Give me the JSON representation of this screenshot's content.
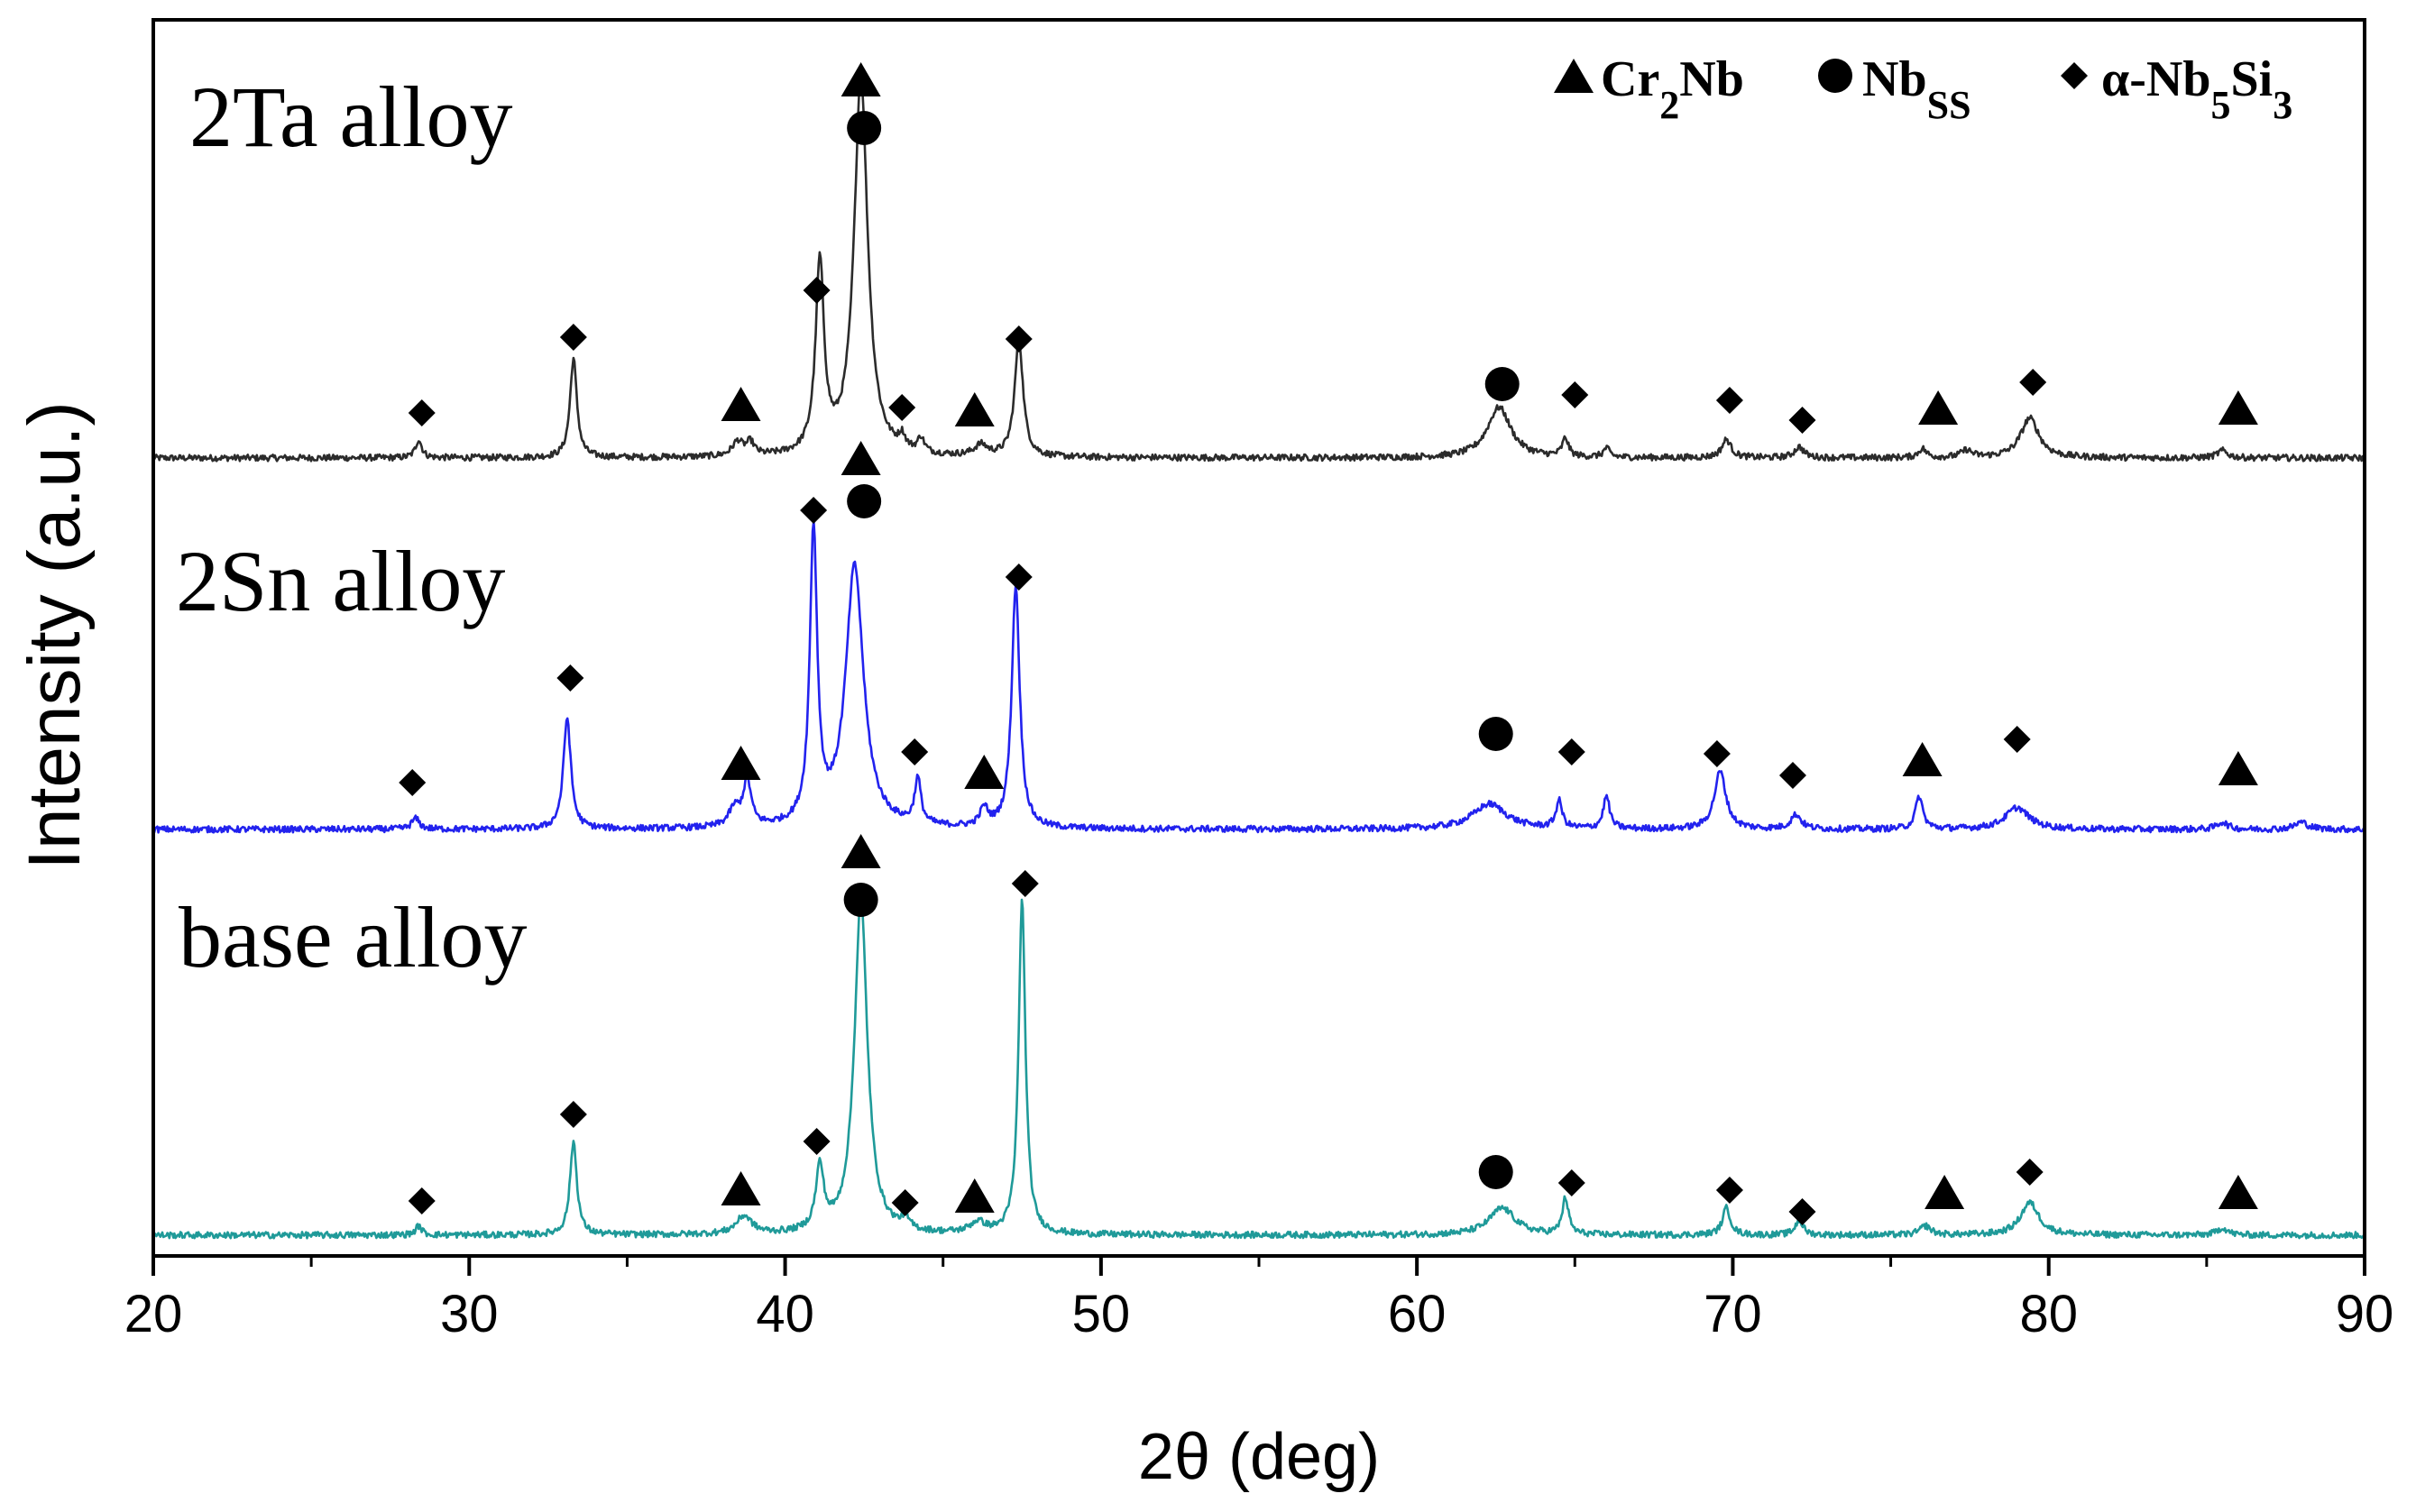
{
  "chart_data": {
    "type": "line",
    "xlabel": "2θ (deg)",
    "ylabel": "Intensity (a.u.)",
    "xlim": [
      20,
      90
    ],
    "xticks": [
      20,
      30,
      40,
      50,
      60,
      70,
      80,
      90
    ],
    "xtick_labels": [
      "20",
      "30",
      "40",
      "50",
      "60",
      "70",
      "80",
      "90"
    ],
    "legend": {
      "placement": "top-right",
      "entries": [
        {
          "marker": "triangle",
          "base": "Cr",
          "sub": "2",
          "rest": "Nb",
          "sub2": "",
          "tail": ""
        },
        {
          "marker": "circle",
          "base": "Nb",
          "sub": "SS",
          "rest": "",
          "sub2": "",
          "tail": ""
        },
        {
          "marker": "diamond",
          "base": "α-Nb",
          "sub": "5",
          "rest": "Si",
          "sub2": "3",
          "tail": ""
        }
      ]
    },
    "series": [
      {
        "name": "2Ta alloy",
        "color": "#2b2b2b",
        "peaks": [
          {
            "x": 28.4,
            "h": 0.1,
            "w": 0.12
          },
          {
            "x": 33.3,
            "h": 0.55,
            "w": 0.13
          },
          {
            "x": 38.5,
            "h": 0.08,
            "w": 0.2
          },
          {
            "x": 38.9,
            "h": 0.07,
            "w": 0.15
          },
          {
            "x": 41.1,
            "h": 1.05,
            "w": 0.16
          },
          {
            "x": 42.4,
            "h": 2.1,
            "w": 0.26
          },
          {
            "x": 43.7,
            "h": 0.07,
            "w": 0.12
          },
          {
            "x": 44.3,
            "h": 0.08,
            "w": 0.12
          },
          {
            "x": 46.2,
            "h": 0.06,
            "w": 0.25
          },
          {
            "x": 47.4,
            "h": 0.65,
            "w": 0.16
          },
          {
            "x": 62.6,
            "h": 0.28,
            "w": 0.45
          },
          {
            "x": 64.7,
            "h": 0.1,
            "w": 0.12
          },
          {
            "x": 66.0,
            "h": 0.05,
            "w": 0.12
          },
          {
            "x": 69.8,
            "h": 0.1,
            "w": 0.18
          },
          {
            "x": 72.1,
            "h": 0.06,
            "w": 0.18
          },
          {
            "x": 76.0,
            "h": 0.05,
            "w": 0.15
          },
          {
            "x": 77.4,
            "h": 0.04,
            "w": 0.2
          },
          {
            "x": 79.4,
            "h": 0.22,
            "w": 0.35
          },
          {
            "x": 85.5,
            "h": 0.04,
            "w": 0.2
          }
        ],
        "markers": [
          {
            "type": "diamond",
            "x": 28.5,
            "y": 0.25
          },
          {
            "type": "diamond",
            "x": 33.3,
            "y": 0.67
          },
          {
            "type": "triangle",
            "x": 38.6,
            "y": 0.3
          },
          {
            "type": "diamond",
            "x": 41.0,
            "y": 0.93
          },
          {
            "type": "circle",
            "x": 42.5,
            "y": 1.83
          },
          {
            "type": "triangle",
            "x": 42.4,
            "y": 2.1
          },
          {
            "type": "diamond",
            "x": 43.7,
            "y": 0.28
          },
          {
            "type": "triangle",
            "x": 46.0,
            "y": 0.27
          },
          {
            "type": "diamond",
            "x": 47.4,
            "y": 0.66
          },
          {
            "type": "circle",
            "x": 62.7,
            "y": 0.41
          },
          {
            "type": "diamond",
            "x": 65.0,
            "y": 0.35
          },
          {
            "type": "diamond",
            "x": 69.9,
            "y": 0.32
          },
          {
            "type": "diamond",
            "x": 72.2,
            "y": 0.21
          },
          {
            "type": "triangle",
            "x": 76.5,
            "y": 0.28
          },
          {
            "type": "diamond",
            "x": 79.5,
            "y": 0.42
          },
          {
            "type": "triangle",
            "x": 86.0,
            "y": 0.28
          }
        ]
      },
      {
        "name": "2Sn alloy",
        "color": "#2222ee",
        "peaks": [
          {
            "x": 28.3,
            "h": 0.06,
            "w": 0.15
          },
          {
            "x": 33.1,
            "h": 0.62,
            "w": 0.14
          },
          {
            "x": 38.4,
            "h": 0.1,
            "w": 0.22
          },
          {
            "x": 38.8,
            "h": 0.25,
            "w": 0.15
          },
          {
            "x": 40.9,
            "h": 1.62,
            "w": 0.14
          },
          {
            "x": 42.2,
            "h": 1.45,
            "w": 0.34
          },
          {
            "x": 44.2,
            "h": 0.25,
            "w": 0.12
          },
          {
            "x": 46.3,
            "h": 0.1,
            "w": 0.15
          },
          {
            "x": 47.3,
            "h": 1.35,
            "w": 0.15
          },
          {
            "x": 62.3,
            "h": 0.14,
            "w": 0.65
          },
          {
            "x": 64.5,
            "h": 0.15,
            "w": 0.12
          },
          {
            "x": 66.0,
            "h": 0.18,
            "w": 0.12
          },
          {
            "x": 69.6,
            "h": 0.32,
            "w": 0.22
          },
          {
            "x": 72.0,
            "h": 0.08,
            "w": 0.2
          },
          {
            "x": 75.9,
            "h": 0.18,
            "w": 0.14
          },
          {
            "x": 79.0,
            "h": 0.12,
            "w": 0.45
          },
          {
            "x": 85.5,
            "h": 0.04,
            "w": 0.2
          },
          {
            "x": 88.0,
            "h": 0.04,
            "w": 0.25
          }
        ],
        "markers": [
          {
            "type": "diamond",
            "x": 28.2,
            "y": 0.26
          },
          {
            "type": "diamond",
            "x": 33.2,
            "y": 0.84
          },
          {
            "type": "triangle",
            "x": 38.6,
            "y": 0.37
          },
          {
            "type": "diamond",
            "x": 40.9,
            "y": 1.77
          },
          {
            "type": "circle",
            "x": 42.5,
            "y": 1.82
          },
          {
            "type": "triangle",
            "x": 42.4,
            "y": 2.06
          },
          {
            "type": "diamond",
            "x": 44.1,
            "y": 0.43
          },
          {
            "type": "triangle",
            "x": 46.3,
            "y": 0.32
          },
          {
            "type": "diamond",
            "x": 47.4,
            "y": 1.4
          },
          {
            "type": "circle",
            "x": 62.5,
            "y": 0.53
          },
          {
            "type": "diamond",
            "x": 64.9,
            "y": 0.43
          },
          {
            "type": "diamond",
            "x": 69.5,
            "y": 0.42
          },
          {
            "type": "diamond",
            "x": 71.9,
            "y": 0.3
          },
          {
            "type": "triangle",
            "x": 76.0,
            "y": 0.39
          },
          {
            "type": "diamond",
            "x": 79.0,
            "y": 0.5
          },
          {
            "type": "triangle",
            "x": 86.0,
            "y": 0.34
          }
        ]
      },
      {
        "name": "base alloy",
        "color": "#1f9a99",
        "peaks": [
          {
            "x": 28.4,
            "h": 0.05,
            "w": 0.12
          },
          {
            "x": 33.3,
            "h": 0.52,
            "w": 0.13
          },
          {
            "x": 38.7,
            "h": 0.1,
            "w": 0.3
          },
          {
            "x": 41.1,
            "h": 0.35,
            "w": 0.15
          },
          {
            "x": 42.4,
            "h": 1.85,
            "w": 0.25
          },
          {
            "x": 43.8,
            "h": 0.06,
            "w": 0.15
          },
          {
            "x": 46.1,
            "h": 0.06,
            "w": 0.3
          },
          {
            "x": 47.5,
            "h": 1.85,
            "w": 0.13
          },
          {
            "x": 62.7,
            "h": 0.15,
            "w": 0.5
          },
          {
            "x": 64.7,
            "h": 0.2,
            "w": 0.12
          },
          {
            "x": 69.8,
            "h": 0.15,
            "w": 0.15
          },
          {
            "x": 72.1,
            "h": 0.08,
            "w": 0.15
          },
          {
            "x": 76.1,
            "h": 0.05,
            "w": 0.2
          },
          {
            "x": 79.4,
            "h": 0.18,
            "w": 0.35
          },
          {
            "x": 85.5,
            "h": 0.04,
            "w": 0.2
          }
        ],
        "markers": [
          {
            "type": "diamond",
            "x": 28.5,
            "y": 0.19
          },
          {
            "type": "diamond",
            "x": 33.3,
            "y": 0.67
          },
          {
            "type": "triangle",
            "x": 38.6,
            "y": 0.26
          },
          {
            "type": "diamond",
            "x": 41.0,
            "y": 0.52
          },
          {
            "type": "circle",
            "x": 42.4,
            "y": 1.86
          },
          {
            "type": "triangle",
            "x": 42.4,
            "y": 2.13
          },
          {
            "type": "diamond",
            "x": 43.8,
            "y": 0.18
          },
          {
            "type": "triangle",
            "x": 46.0,
            "y": 0.22
          },
          {
            "type": "diamond",
            "x": 47.6,
            "y": 1.95
          },
          {
            "type": "circle",
            "x": 62.5,
            "y": 0.35
          },
          {
            "type": "diamond",
            "x": 64.9,
            "y": 0.29
          },
          {
            "type": "diamond",
            "x": 69.9,
            "y": 0.25
          },
          {
            "type": "diamond",
            "x": 72.2,
            "y": 0.13
          },
          {
            "type": "triangle",
            "x": 76.7,
            "y": 0.24
          },
          {
            "type": "diamond",
            "x": 79.4,
            "y": 0.35
          },
          {
            "type": "triangle",
            "x": 86.0,
            "y": 0.24
          }
        ]
      }
    ]
  }
}
